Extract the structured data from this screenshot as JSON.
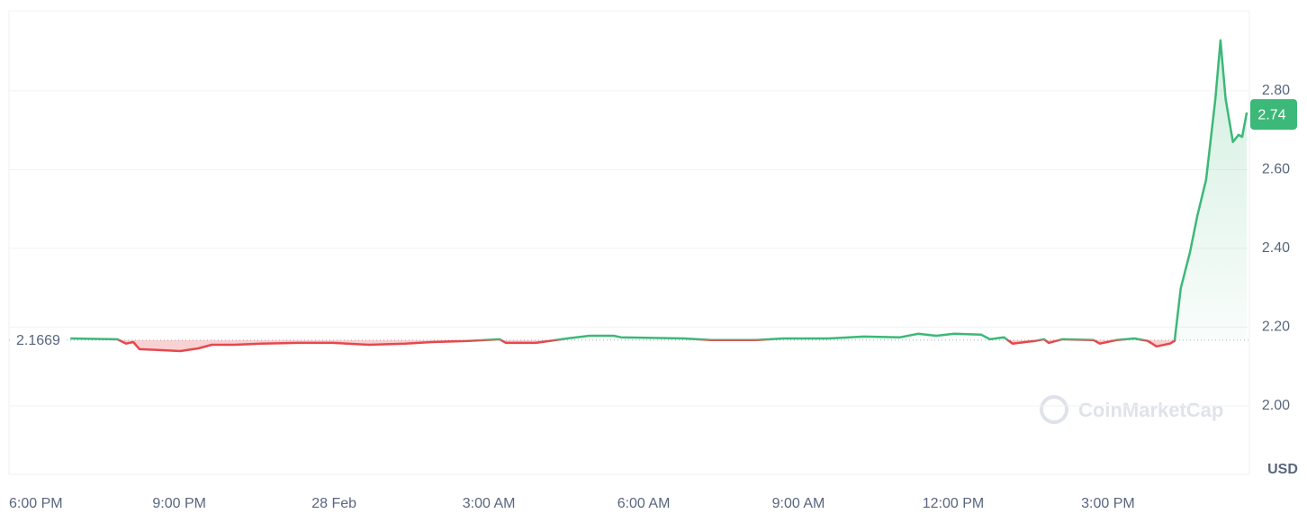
{
  "chart_data": {
    "type": "line",
    "x": [
      0.89,
      1.8,
      1.97,
      2.11,
      2.23,
      2.58,
      3.02,
      3.37,
      3.63,
      4.06,
      4.59,
      5.29,
      5.98,
      6.68,
      7.38,
      7.9,
      8.6,
      9.21,
      9.33,
      9.91,
      10.52,
      10.95,
      11.42,
      11.56,
      12.79,
      13.31,
      14.18,
      14.7,
      15.58,
      16.27,
      16.97,
      17.32,
      17.67,
      18.02,
      18.54,
      18.71,
      18.98,
      19.15,
      19.59,
      19.76,
      19.85,
      20.11,
      20.72,
      20.84,
      21.16,
      21.51,
      21.77,
      21.94,
      22.2,
      22.29,
      22.41,
      22.59,
      22.73,
      22.9,
      23.08,
      23.18,
      23.28,
      23.42,
      23.53,
      23.6,
      23.69
    ],
    "series": [
      {
        "values": [
          2.171,
          2.169,
          2.158,
          2.162,
          2.144,
          2.142,
          2.139,
          2.146,
          2.155,
          2.155,
          2.158,
          2.16,
          2.16,
          2.155,
          2.158,
          2.162,
          2.165,
          2.169,
          2.16,
          2.16,
          2.171,
          2.178,
          2.178,
          2.174,
          2.171,
          2.167,
          2.167,
          2.171,
          2.171,
          2.176,
          2.174,
          2.183,
          2.178,
          2.183,
          2.181,
          2.169,
          2.174,
          2.158,
          2.165,
          2.169,
          2.16,
          2.169,
          2.167,
          2.158,
          2.167,
          2.171,
          2.165,
          2.151,
          2.158,
          2.165,
          2.299,
          2.391,
          2.482,
          2.574,
          2.779,
          2.928,
          2.779,
          2.67,
          2.688,
          2.683,
          2.745
        ]
      }
    ],
    "up_color": "#3cb878",
    "down_color": "#e5484d",
    "baseline": 2.1669,
    "last_price": 2.74,
    "xlim": [
      -0.3,
      23.74
    ],
    "xticks": [
      {
        "value": 0,
        "label": "6:00 PM"
      },
      {
        "value": 3,
        "label": "9:00 PM"
      },
      {
        "value": 6,
        "label": "28 Feb"
      },
      {
        "value": 9,
        "label": "3:00 AM"
      },
      {
        "value": 12,
        "label": "6:00 AM"
      },
      {
        "value": 15,
        "label": "9:00 AM"
      },
      {
        "value": 18,
        "label": "12:00 PM"
      },
      {
        "value": 21,
        "label": "3:00 PM"
      }
    ],
    "ylim": [
      1.826,
      3.003
    ],
    "yticks": [
      {
        "value": 2,
        "label": "2.00"
      },
      {
        "value": 2.2,
        "label": "2.20"
      },
      {
        "value": 2.4,
        "label": "2.40"
      },
      {
        "value": 2.6,
        "label": "2.60"
      },
      {
        "value": 2.8,
        "label": "2.80"
      }
    ],
    "grid": true,
    "unit": "USD",
    "watermark": "CoinMarketCap"
  }
}
